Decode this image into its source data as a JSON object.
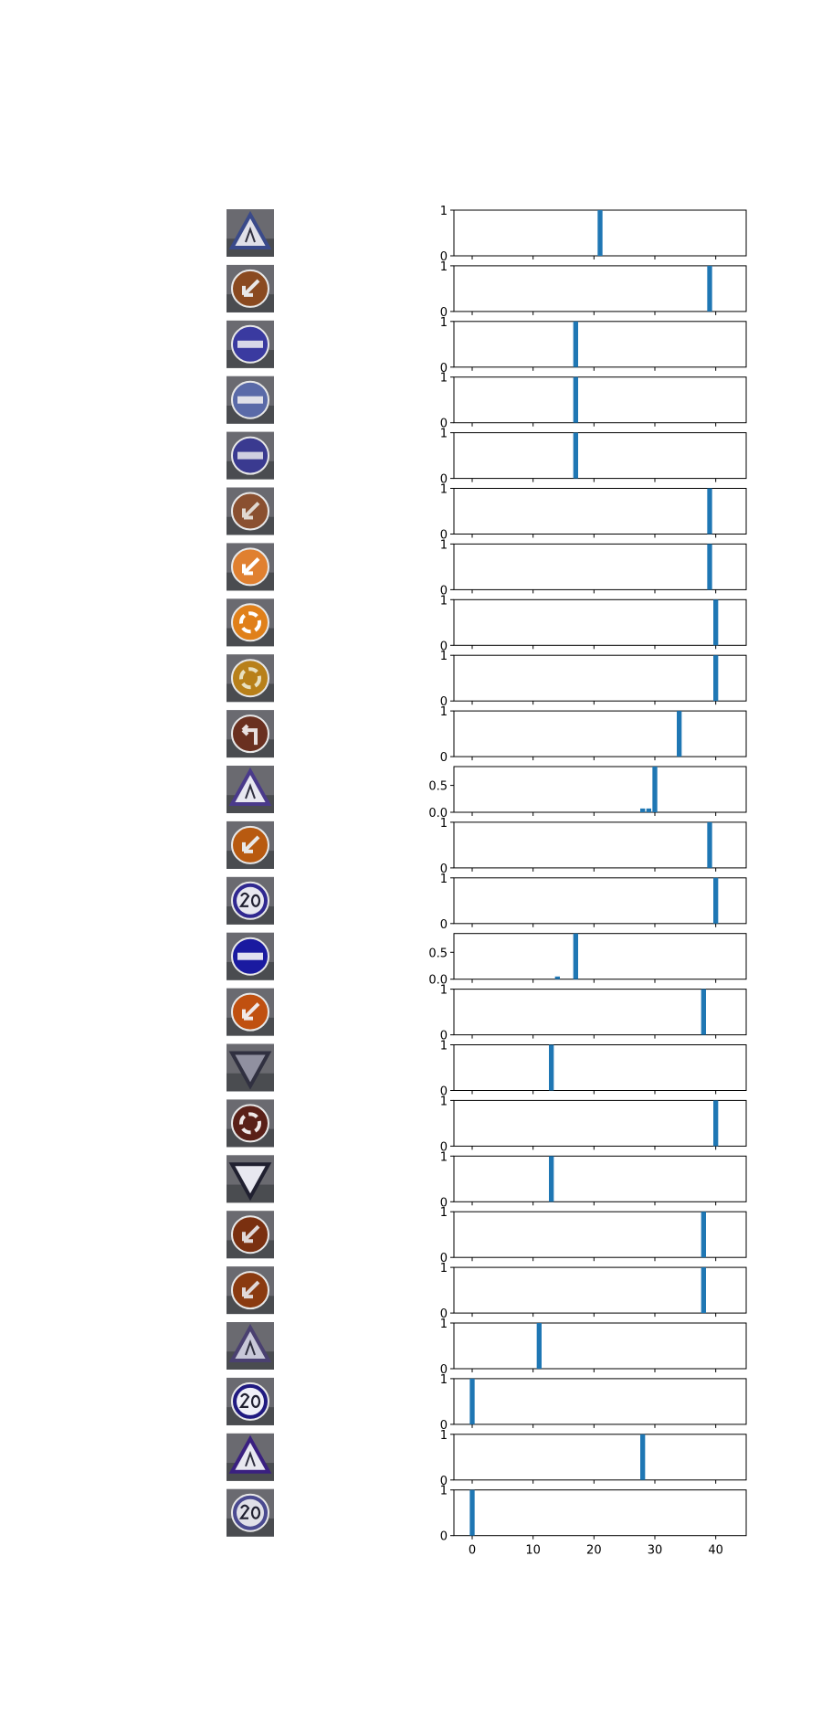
{
  "figure": {
    "bar_color": "#1f77b4",
    "x_ticks": [
      "0",
      "10",
      "20",
      "30",
      "40"
    ],
    "x_tick_values": [
      0,
      10,
      20,
      30,
      40
    ]
  },
  "chart_data": {
    "type": "bar",
    "xlim": [
      -3,
      45
    ],
    "x_tick_labels": [
      "0",
      "10",
      "20",
      "30",
      "40"
    ],
    "rows": [
      {
        "sign_icon": "triangle-warning-sign-icon",
        "sign_colors": [
          "#3a4a8a",
          "#e0e0e8"
        ],
        "ylim": [
          0,
          1
        ],
        "y_ticks": [
          "0",
          "1"
        ],
        "bars": [
          {
            "x": 21,
            "y": 1.0
          }
        ]
      },
      {
        "sign_icon": "keep-left-arrow-sign-icon",
        "sign_colors": [
          "#8a4a20",
          "#e8e8e8"
        ],
        "ylim": [
          0,
          1
        ],
        "y_ticks": [
          "0",
          "1"
        ],
        "bars": [
          {
            "x": 39,
            "y": 1.0
          }
        ]
      },
      {
        "sign_icon": "no-entry-sign-icon",
        "sign_colors": [
          "#3a3aa0",
          "#d8d8e8"
        ],
        "ylim": [
          0,
          1
        ],
        "y_ticks": [
          "0",
          "1"
        ],
        "bars": [
          {
            "x": 17,
            "y": 1.0
          }
        ]
      },
      {
        "sign_icon": "no-entry-sign-icon",
        "sign_colors": [
          "#5a6aa8",
          "#e0e0e8"
        ],
        "ylim": [
          0,
          1
        ],
        "y_ticks": [
          "0",
          "1"
        ],
        "bars": [
          {
            "x": 17,
            "y": 1.0
          }
        ]
      },
      {
        "sign_icon": "no-entry-sign-icon",
        "sign_colors": [
          "#3a3a90",
          "#d0d0e0"
        ],
        "ylim": [
          0,
          1
        ],
        "y_ticks": [
          "0",
          "1"
        ],
        "bars": [
          {
            "x": 17,
            "y": 1.0
          }
        ]
      },
      {
        "sign_icon": "keep-left-arrow-sign-icon",
        "sign_colors": [
          "#8a5030",
          "#e0d8d0"
        ],
        "ylim": [
          0,
          1
        ],
        "y_ticks": [
          "0",
          "1"
        ],
        "bars": [
          {
            "x": 39,
            "y": 1.0
          }
        ]
      },
      {
        "sign_icon": "keep-left-arrow-sign-icon",
        "sign_colors": [
          "#e08030",
          "#ffffff"
        ],
        "ylim": [
          0,
          1
        ],
        "y_ticks": [
          "0",
          "1"
        ],
        "bars": [
          {
            "x": 39,
            "y": 1.0
          }
        ]
      },
      {
        "sign_icon": "roundabout-sign-icon",
        "sign_colors": [
          "#e0801a",
          "#ffffff"
        ],
        "ylim": [
          0,
          1
        ],
        "y_ticks": [
          "0",
          "1"
        ],
        "bars": [
          {
            "x": 40,
            "y": 1.0
          }
        ]
      },
      {
        "sign_icon": "roundabout-sign-icon",
        "sign_colors": [
          "#b8801a",
          "#e8e0c0"
        ],
        "ylim": [
          0,
          1
        ],
        "y_ticks": [
          "0",
          "1"
        ],
        "bars": [
          {
            "x": 40,
            "y": 1.0
          }
        ]
      },
      {
        "sign_icon": "turn-left-sign-icon",
        "sign_colors": [
          "#6a3020",
          "#e8e0e0"
        ],
        "ylim": [
          0,
          1
        ],
        "y_ticks": [
          "0",
          "1"
        ],
        "bars": [
          {
            "x": 34,
            "y": 1.0
          }
        ]
      },
      {
        "sign_icon": "triangle-warning-sign-icon",
        "sign_colors": [
          "#4a3a8a",
          "#e8e8f0"
        ],
        "ylim": [
          0,
          0.85
        ],
        "y_ticks": [
          "0.0",
          "0.5"
        ],
        "bars": [
          {
            "x": 28,
            "y": 0.07
          },
          {
            "x": 29,
            "y": 0.07
          },
          {
            "x": 30,
            "y": 0.85
          }
        ]
      },
      {
        "sign_icon": "keep-left-arrow-sign-icon",
        "sign_colors": [
          "#b85a10",
          "#e8e8e8"
        ],
        "ylim": [
          0,
          1
        ],
        "y_ticks": [
          "0",
          "1"
        ],
        "bars": [
          {
            "x": 39,
            "y": 1.0
          }
        ]
      },
      {
        "sign_icon": "speed-limit-20-sign-icon",
        "sign_colors": [
          "#302890",
          "#e8e8f0"
        ],
        "ylim": [
          0,
          1
        ],
        "y_ticks": [
          "0",
          "1"
        ],
        "bars": [
          {
            "x": 40,
            "y": 1.0
          }
        ]
      },
      {
        "sign_icon": "no-entry-sign-icon",
        "sign_colors": [
          "#1a1aa0",
          "#e0e0f0"
        ],
        "ylim": [
          0,
          0.85
        ],
        "y_ticks": [
          "0.0",
          "0.5"
        ],
        "bars": [
          {
            "x": 14,
            "y": 0.05
          },
          {
            "x": 17,
            "y": 0.85
          }
        ]
      },
      {
        "sign_icon": "keep-left-arrow-sign-icon",
        "sign_colors": [
          "#c05010",
          "#f0e8e8"
        ],
        "ylim": [
          0,
          1
        ],
        "y_ticks": [
          "0",
          "1"
        ],
        "bars": [
          {
            "x": 38,
            "y": 1.0
          }
        ]
      },
      {
        "sign_icon": "give-way-sign-icon",
        "sign_colors": [
          "#303040",
          "#9090a0"
        ],
        "ylim": [
          0,
          1
        ],
        "y_ticks": [
          "0",
          "1"
        ],
        "bars": [
          {
            "x": 13,
            "y": 1.0
          }
        ]
      },
      {
        "sign_icon": "roundabout-sign-icon",
        "sign_colors": [
          "#5a2018",
          "#f0e8e8"
        ],
        "ylim": [
          0,
          1
        ],
        "y_ticks": [
          "0",
          "1"
        ],
        "bars": [
          {
            "x": 40,
            "y": 1.0
          }
        ]
      },
      {
        "sign_icon": "give-way-sign-icon",
        "sign_colors": [
          "#202030",
          "#e8e8f0"
        ],
        "ylim": [
          0,
          1
        ],
        "y_ticks": [
          "0",
          "1"
        ],
        "bars": [
          {
            "x": 13,
            "y": 1.0
          }
        ]
      },
      {
        "sign_icon": "keep-left-arrow-sign-icon",
        "sign_colors": [
          "#7a3010",
          "#e0d8d8"
        ],
        "ylim": [
          0,
          1
        ],
        "y_ticks": [
          "0",
          "1"
        ],
        "bars": [
          {
            "x": 38,
            "y": 1.0
          }
        ]
      },
      {
        "sign_icon": "keep-left-arrow-sign-icon",
        "sign_colors": [
          "#8a3a10",
          "#e0d8d8"
        ],
        "ylim": [
          0,
          1
        ],
        "y_ticks": [
          "0",
          "1"
        ],
        "bars": [
          {
            "x": 38,
            "y": 1.0
          }
        ]
      },
      {
        "sign_icon": "triangle-warning-sign-icon",
        "sign_colors": [
          "#4a4070",
          "#c8c8d8"
        ],
        "ylim": [
          0,
          1
        ],
        "y_ticks": [
          "0",
          "1"
        ],
        "bars": [
          {
            "x": 11,
            "y": 1.0
          }
        ]
      },
      {
        "sign_icon": "speed-limit-20-sign-icon",
        "sign_colors": [
          "#201a80",
          "#f0f0f8"
        ],
        "ylim": [
          0,
          1
        ],
        "y_ticks": [
          "0",
          "1"
        ],
        "bars": [
          {
            "x": 0,
            "y": 1.0
          }
        ]
      },
      {
        "sign_icon": "triangle-warning-sign-icon",
        "sign_colors": [
          "#3a2080",
          "#e8e8f0"
        ],
        "ylim": [
          0,
          1
        ],
        "y_ticks": [
          "0",
          "1"
        ],
        "bars": [
          {
            "x": 28,
            "y": 1.0
          }
        ]
      },
      {
        "sign_icon": "speed-limit-20-sign-icon",
        "sign_colors": [
          "#4a4a90",
          "#e0e0e8"
        ],
        "ylim": [
          0,
          1
        ],
        "y_ticks": [
          "0",
          "1"
        ],
        "bars": [
          {
            "x": 0,
            "y": 1.0
          }
        ]
      }
    ]
  }
}
